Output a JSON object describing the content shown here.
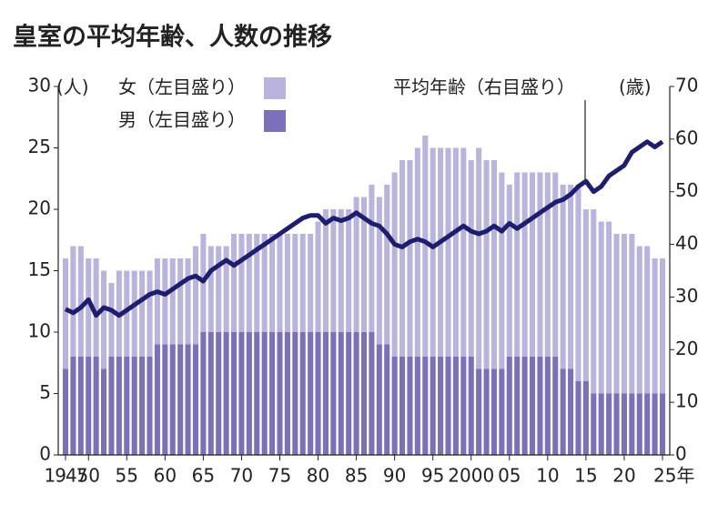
{
  "chart_data": {
    "type": "stacked-bar-line",
    "title": "皇室の平均年齢、人数の推移",
    "y_unit": "(人)",
    "y2_unit": "(歳)",
    "annotation": "平均年齢（右目盛り）",
    "x": [
      1947,
      1948,
      1949,
      1950,
      1951,
      1952,
      1953,
      1954,
      1955,
      1956,
      1957,
      1958,
      1959,
      1960,
      1961,
      1962,
      1963,
      1964,
      1965,
      1966,
      1967,
      1968,
      1969,
      1970,
      1971,
      1972,
      1973,
      1974,
      1975,
      1976,
      1977,
      1978,
      1979,
      1980,
      1981,
      1982,
      1983,
      1984,
      1985,
      1986,
      1987,
      1988,
      1989,
      1990,
      1991,
      1992,
      1993,
      1994,
      1995,
      1996,
      1997,
      1998,
      1999,
      2000,
      2001,
      2002,
      2003,
      2004,
      2005,
      2006,
      2007,
      2008,
      2009,
      2010,
      2011,
      2012,
      2013,
      2014,
      2015,
      2016,
      2017,
      2018,
      2019,
      2020,
      2021,
      2022,
      2023,
      2024,
      2025
    ],
    "xlim": [
      1947,
      2025
    ],
    "xticks": [
      1947,
      {
        "value": 1950,
        "label": "50"
      },
      {
        "value": 1955,
        "label": "55"
      },
      {
        "value": 1960,
        "label": "60"
      },
      {
        "value": 1965,
        "label": "65"
      },
      {
        "value": 1970,
        "label": "70"
      },
      {
        "value": 1975,
        "label": "75"
      },
      {
        "value": 1980,
        "label": "80"
      },
      {
        "value": 1985,
        "label": "85"
      },
      {
        "value": 1990,
        "label": "90"
      },
      {
        "value": 1995,
        "label": "95"
      },
      2000,
      {
        "value": 2005,
        "label": "05"
      },
      {
        "value": 2010,
        "label": "10"
      },
      {
        "value": 2015,
        "label": "15"
      },
      {
        "value": 2020,
        "label": "20"
      },
      {
        "value": 2025,
        "label": "25年"
      }
    ],
    "ylim": [
      0,
      30
    ],
    "yticks": [
      0,
      5,
      10,
      15,
      20,
      25,
      30
    ],
    "y2lim": [
      0,
      70
    ],
    "y2ticks": [
      0,
      10,
      20,
      30,
      40,
      50,
      60,
      70
    ],
    "series": [
      {
        "name": "女（左目盛り）",
        "color": "#b9b4dd",
        "values": [
          9,
          9,
          9,
          8,
          8,
          8,
          6,
          7,
          7,
          7,
          7,
          7,
          7,
          7,
          7,
          7,
          7,
          8,
          8,
          7,
          7,
          7,
          8,
          8,
          8,
          8,
          8,
          8,
          8,
          8,
          8,
          8,
          8,
          9,
          10,
          10,
          10,
          10,
          11,
          11,
          12,
          12,
          13,
          15,
          16,
          16,
          17,
          18,
          17,
          17,
          17,
          17,
          17,
          16,
          18,
          17,
          17,
          16,
          14,
          15,
          15,
          15,
          15,
          15,
          15,
          15,
          15,
          16,
          14,
          15,
          14,
          14,
          13,
          13,
          13,
          12,
          12,
          11,
          11
        ]
      },
      {
        "name": "男（左目盛り）",
        "color": "#7b70b9",
        "values": [
          7,
          8,
          8,
          8,
          8,
          7,
          8,
          8,
          8,
          8,
          8,
          8,
          9,
          9,
          9,
          9,
          9,
          9,
          10,
          10,
          10,
          10,
          10,
          10,
          10,
          10,
          10,
          10,
          10,
          10,
          10,
          10,
          10,
          10,
          10,
          10,
          10,
          10,
          10,
          10,
          10,
          9,
          9,
          8,
          8,
          8,
          8,
          8,
          8,
          8,
          8,
          8,
          8,
          8,
          7,
          7,
          7,
          7,
          8,
          8,
          8,
          8,
          8,
          8,
          8,
          7,
          7,
          6,
          6,
          5,
          5,
          5,
          5,
          5,
          5,
          5,
          5,
          5,
          5
        ]
      },
      {
        "name": "平均年齢（右目盛り）",
        "color": "#1f1d6e",
        "axis": "y2",
        "values": [
          27.7,
          27,
          28,
          29.5,
          26.5,
          28,
          27.5,
          26.5,
          27.5,
          28.5,
          29.5,
          30.5,
          31,
          30.5,
          31.5,
          32.5,
          33.5,
          34,
          33,
          35,
          36,
          37,
          36,
          37,
          38,
          39,
          40,
          41,
          42,
          43,
          44,
          45,
          45.5,
          45.5,
          44,
          45,
          44.5,
          45,
          46,
          45,
          44,
          43.5,
          42,
          40,
          39.5,
          40.5,
          41,
          40.5,
          39.5,
          40.5,
          41.5,
          42.5,
          43.5,
          42.5,
          42,
          42.5,
          43.5,
          42.5,
          44,
          43,
          44,
          45,
          46,
          47,
          48,
          48.5,
          49.5,
          51,
          52,
          50,
          51,
          53,
          54,
          55,
          57.5,
          58.5,
          59.5,
          58.5,
          59.5
        ]
      }
    ]
  }
}
